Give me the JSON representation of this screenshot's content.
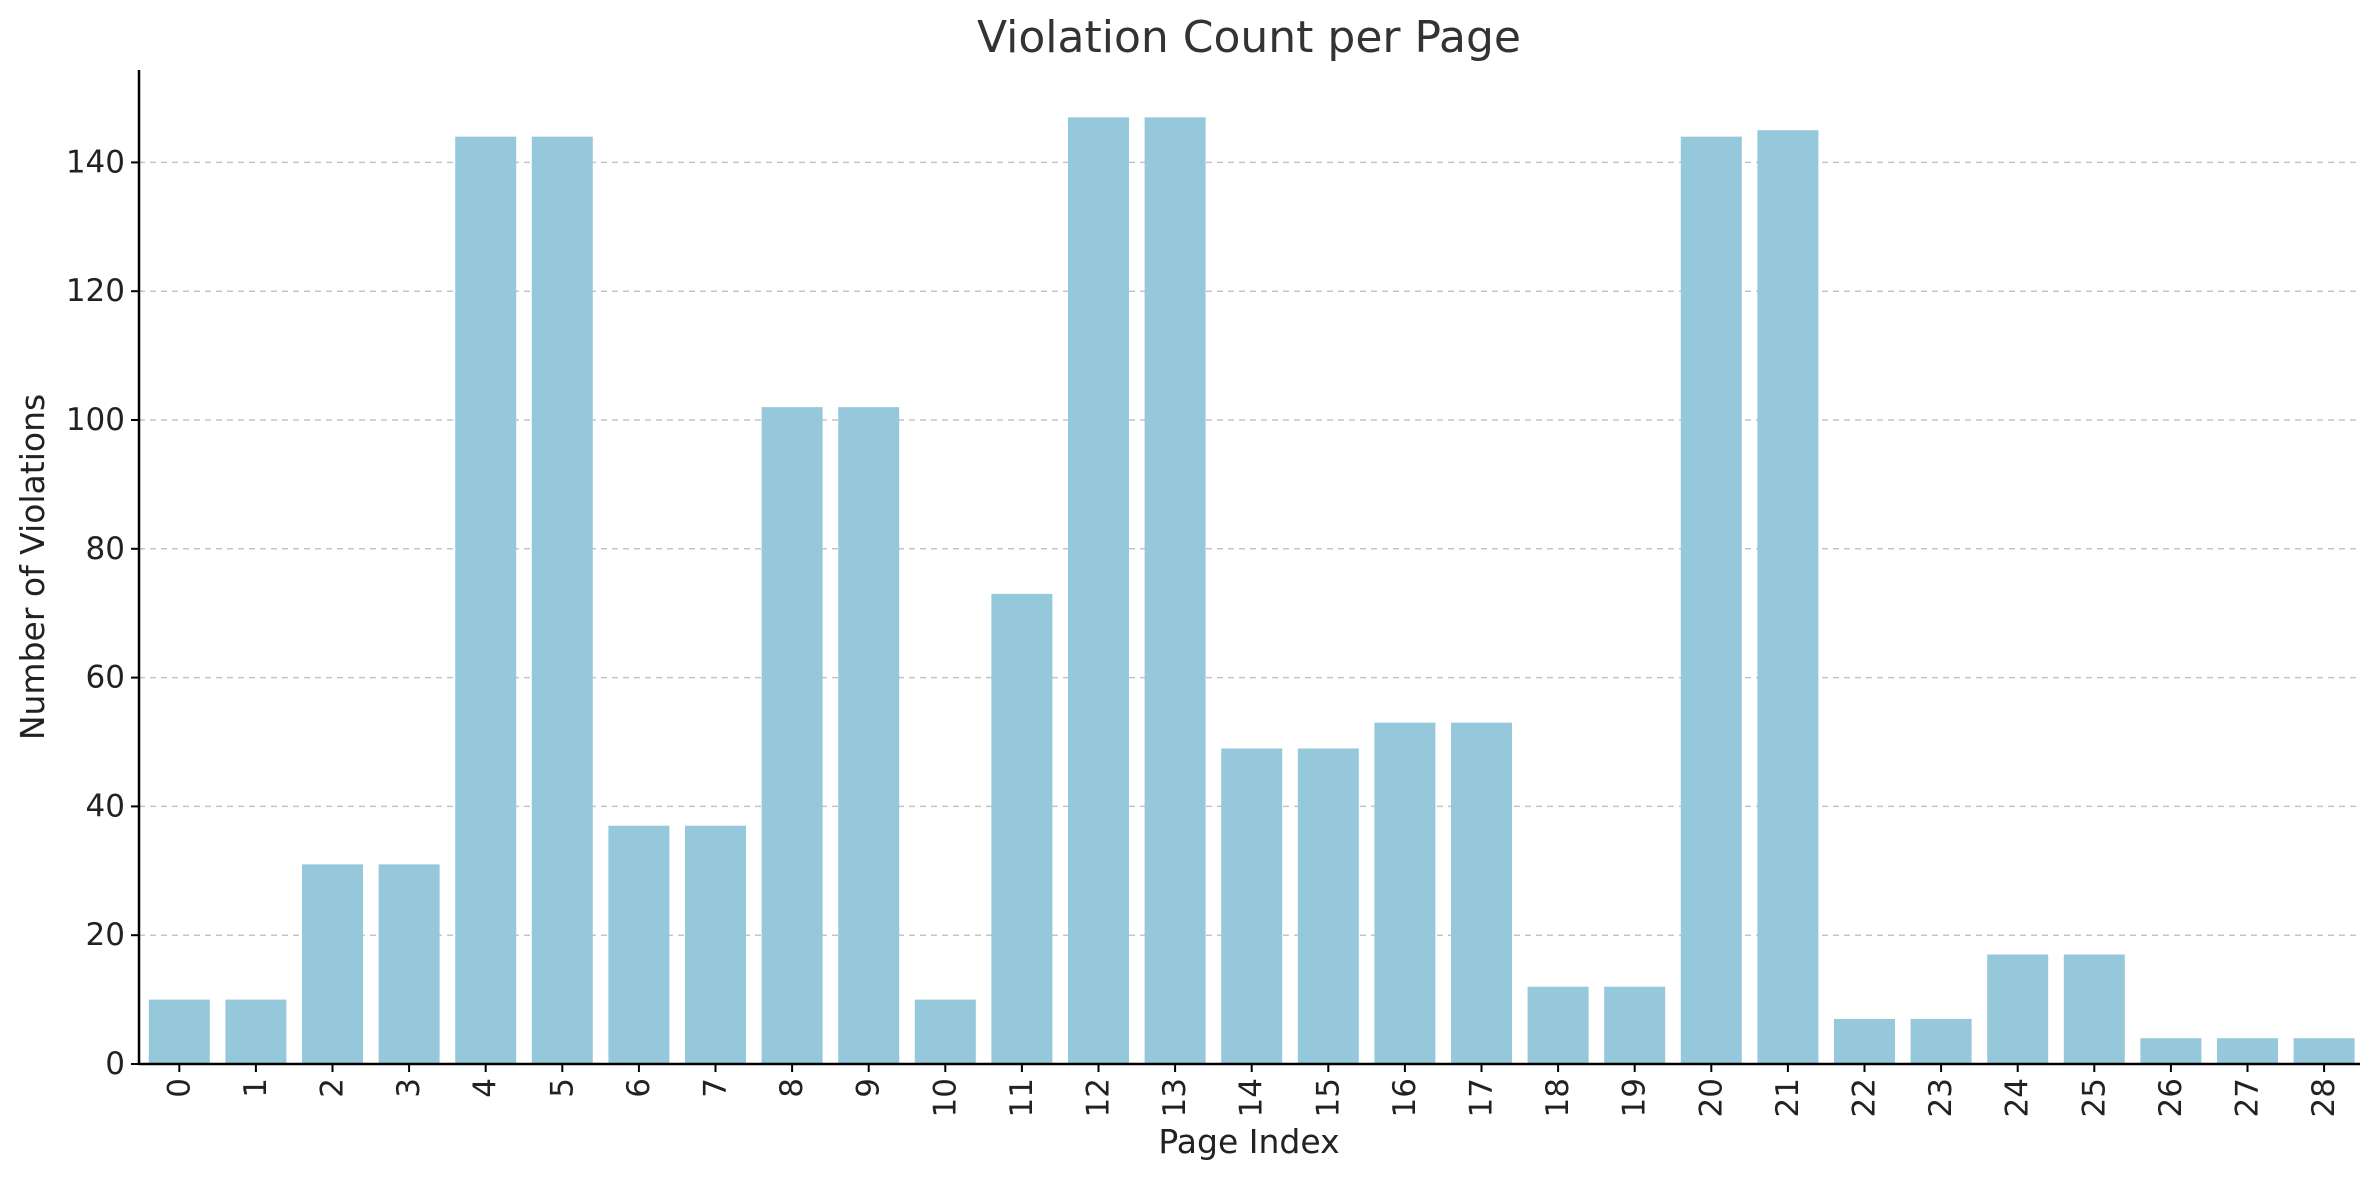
{
  "chart_data": {
    "type": "bar",
    "title": "Violation Count per Page",
    "xlabel": "Page Index",
    "ylabel": "Number of Violations",
    "categories": [
      "0",
      "1",
      "2",
      "3",
      "4",
      "5",
      "6",
      "7",
      "8",
      "9",
      "10",
      "11",
      "12",
      "13",
      "14",
      "15",
      "16",
      "17",
      "18",
      "19",
      "20",
      "21",
      "22",
      "23",
      "24",
      "25",
      "26",
      "27",
      "28"
    ],
    "values": [
      10,
      10,
      31,
      31,
      144,
      144,
      37,
      37,
      102,
      102,
      10,
      73,
      147,
      147,
      49,
      49,
      53,
      53,
      12,
      12,
      144,
      145,
      7,
      7,
      17,
      17,
      4,
      4,
      4
    ],
    "ylim": [
      0,
      154.35
    ],
    "yticks": [
      0,
      20,
      40,
      60,
      80,
      100,
      120,
      140
    ],
    "grid": "horizontal dashed",
    "legend": "none",
    "x_tick_rotation": "vertical",
    "bar_color": "#96c8dc"
  }
}
